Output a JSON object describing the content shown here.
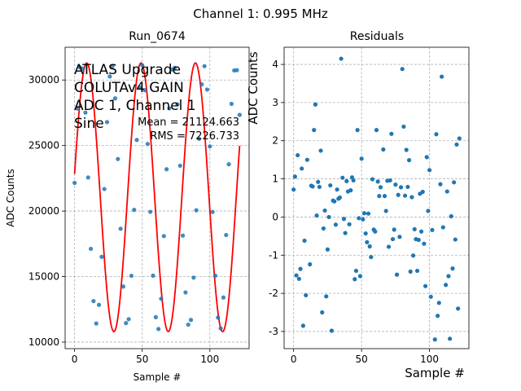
{
  "suptitle": "Channel 1: 0.995 MHz",
  "colors": {
    "points": "#1f77b4",
    "fit": "#ff0000",
    "grid": "#b0b0b0"
  },
  "chart_data": [
    {
      "type": "scatter",
      "title": "Run_0674",
      "xlabel": "Sample #",
      "ylabel": "ADC Counts",
      "xlim": [
        -7,
        129
      ],
      "ylim": [
        9500,
        32500
      ],
      "xticks": [
        0,
        50,
        100
      ],
      "yticks": [
        10000,
        15000,
        20000,
        25000,
        30000
      ],
      "grid": true,
      "annotations": [
        "ATLAS Upgrade",
        "COLUTAv4 GAIN",
        "ADC 1, Channel 1",
        "Sine"
      ],
      "stats": [
        "Mean = 21124.663",
        "RMS = 7226.733"
      ],
      "series": [
        {
          "kind": "scatter",
          "x": [
            0,
            2,
            4,
            6,
            8,
            10,
            12,
            14,
            16,
            18,
            20,
            22,
            24,
            26,
            28,
            30,
            32,
            34,
            36,
            38,
            40,
            42,
            44,
            46,
            48,
            50,
            52,
            54,
            56,
            58,
            60,
            62,
            64,
            66,
            68,
            70,
            72,
            74,
            76,
            78,
            80,
            82,
            84,
            86,
            88,
            90,
            92,
            94,
            96,
            98,
            100,
            102,
            104,
            106,
            108,
            110,
            112,
            114,
            116,
            118,
            120,
            122
          ],
          "y": [
            22150,
            27830,
            30960,
            30860,
            27510,
            22560,
            17120,
            13130,
            11420,
            12840,
            16510,
            21680,
            26790,
            30270,
            31050,
            28600,
            23970,
            18650,
            14240,
            11450,
            11750,
            15060,
            20090,
            25430,
            29420,
            31130,
            29220,
            25120,
            19940,
            15070,
            11900,
            11000,
            13310,
            18090,
            23190,
            27840,
            30800,
            30930,
            28140,
            23460,
            18130,
            13790,
            11330,
            11690,
            14920,
            20060,
            25510,
            29670,
            31060,
            29270,
            24930,
            19930,
            15070,
            11870,
            11050,
            13400,
            18170,
            23570,
            28180,
            30730,
            30750,
            27340
          ]
        },
        {
          "kind": "line",
          "name": "fit",
          "amplitude": 10250,
          "mean": 21050,
          "samples_per_cycle": 40.2,
          "phase_deg": 10
        }
      ]
    },
    {
      "type": "scatter",
      "title": "Residuals",
      "xlabel": "Sample #",
      "ylabel": "ADC Counts",
      "xlim": [
        -7,
        129
      ],
      "ylim": [
        -3.45,
        4.45
      ],
      "xticks": [
        0,
        50,
        100
      ],
      "yticks": [
        -3,
        -2,
        -1,
        0,
        1,
        2,
        3,
        4
      ],
      "grid": true,
      "x": [
        0,
        1,
        2,
        3,
        4,
        5,
        6,
        7,
        8,
        9,
        10,
        12,
        13,
        14,
        15,
        16,
        17,
        18,
        19,
        20,
        21,
        22,
        23,
        24,
        25,
        26,
        27,
        28,
        29,
        30,
        31,
        32,
        33,
        34,
        35,
        36,
        37,
        38,
        39,
        40,
        41,
        42,
        43,
        44,
        45,
        46,
        47,
        48,
        49,
        50,
        51,
        52,
        53,
        54,
        55,
        56,
        57,
        58,
        59,
        60,
        61,
        62,
        63,
        64,
        66,
        67,
        68,
        69,
        70,
        71,
        72,
        73,
        74,
        75,
        76,
        77,
        78,
        79,
        80,
        81,
        82,
        83,
        84,
        85,
        86,
        87,
        88,
        89,
        90,
        91,
        92,
        93,
        94,
        95,
        96,
        97,
        98,
        99,
        100,
        101,
        102,
        104,
        105,
        106,
        107,
        108,
        109,
        110,
        112,
        113,
        114,
        115,
        116,
        117,
        118,
        119,
        120,
        121,
        122
      ],
      "y": [
        0.72,
        1.06,
        -1.53,
        1.62,
        -1.62,
        -1.36,
        1.27,
        -2.85,
        -0.62,
        -2.05,
        1.5,
        -1.24,
        0.82,
        0.8,
        2.28,
        2.95,
        0.04,
        0.92,
        0.79,
        1.74,
        -2.5,
        -0.3,
        0.17,
        -2.08,
        -0.85,
        0.0,
        0.83,
        -2.98,
        0.43,
        0.41,
        -0.2,
        0.72,
        0.48,
        0.51,
        4.15,
        1.03,
        -0.05,
        -0.42,
        0.94,
        0.67,
        -0.19,
        0.7,
        1.04,
        0.96,
        -1.63,
        -1.41,
        2.28,
        -0.03,
        -1.55,
        1.53,
        -0.06,
        0.1,
        -0.43,
        -0.66,
        0.09,
        -0.77,
        -1.05,
        0.99,
        -0.33,
        -0.38,
        2.28,
        0.93,
        0.55,
        0.78,
        1.77,
        0.55,
        0.16,
        0.95,
        -0.78,
        0.96,
        2.18,
        -0.58,
        -0.33,
        0.85,
        -1.51,
        0.58,
        -0.52,
        0.78,
        3.88,
        2.37,
        0.56,
        1.76,
        0.79,
        1.49,
        -1.43,
        0.52,
        -1.01,
        -0.32,
        -0.58,
        -1.41,
        -0.6,
        0.61,
        -0.38,
        0.66,
        -0.7,
        -1.81,
        1.57,
        0.16,
        1.23,
        -2.09,
        -0.34,
        -3.21,
        2.17,
        -2.59,
        -2.25,
        0.86,
        3.68,
        -0.27,
        -1.78,
        0.67,
        -1.55,
        -3.19,
        0.02,
        -1.35,
        0.91,
        -0.59,
        1.9,
        -2.4,
        2.06
      ]
    }
  ],
  "overlay_xlabel": "Sample #"
}
